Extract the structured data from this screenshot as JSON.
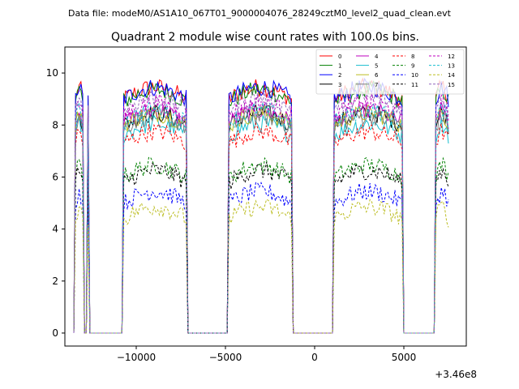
{
  "chart_data": {
    "type": "line",
    "suptitle": "Data file: modeM0/AS1A10_067T01_9000004076_28249cztM0_level2_quad_clean.evt",
    "title": "Quadrant 2 module wise count rates with 100.0s bins.",
    "xlabel": "",
    "ylabel": "",
    "x_offset_label": "+3.46e8",
    "xlim": [
      -14000,
      8500
    ],
    "ylim": [
      -0.5,
      11.0
    ],
    "x_ticks": [
      -10000,
      -5000,
      0,
      5000
    ],
    "x_tick_labels": [
      "−10000",
      "−5000",
      "0",
      "5000"
    ],
    "y_ticks": [
      0,
      2,
      4,
      6,
      8,
      10
    ],
    "y_tick_labels": [
      "0",
      "2",
      "4",
      "6",
      "8",
      "10"
    ],
    "grid": false,
    "legend_position": "upper-right",
    "legend_columns": 4,
    "series_meta": [
      {
        "name": "0",
        "color": "#ff0000",
        "style": "solid",
        "level": 9.0
      },
      {
        "name": "1",
        "color": "#008000",
        "style": "solid",
        "level": 8.9
      },
      {
        "name": "2",
        "color": "#0000ff",
        "style": "solid",
        "level": 9.0
      },
      {
        "name": "3",
        "color": "#000000",
        "style": "solid",
        "level": 8.0
      },
      {
        "name": "4",
        "color": "#bf00bf",
        "style": "solid",
        "level": 8.1
      },
      {
        "name": "5",
        "color": "#17becf",
        "style": "solid",
        "level": 7.6
      },
      {
        "name": "6",
        "color": "#bcbd22",
        "style": "solid",
        "level": 8.0
      },
      {
        "name": "7",
        "color": "#7f7f7f",
        "style": "solid",
        "level": 7.9
      },
      {
        "name": "8",
        "color": "#ff0000",
        "style": "dashed",
        "level": 7.3
      },
      {
        "name": "9",
        "color": "#008000",
        "style": "dashed",
        "level": 6.0
      },
      {
        "name": "10",
        "color": "#0000ff",
        "style": "dashed",
        "level": 5.0
      },
      {
        "name": "11",
        "color": "#000000",
        "style": "dashed",
        "level": 5.8
      },
      {
        "name": "12",
        "color": "#bf00bf",
        "style": "dashed",
        "level": 8.4
      },
      {
        "name": "13",
        "color": "#17becf",
        "style": "dashed",
        "level": 8.1
      },
      {
        "name": "14",
        "color": "#bcbd22",
        "style": "dashed",
        "level": 4.4
      },
      {
        "name": "15",
        "color": "#9467bd",
        "style": "dashed",
        "level": 8.6
      }
    ],
    "orbit_segments": [
      {
        "x_start": -13400,
        "x_end": -13000
      },
      {
        "x_start": -12700,
        "x_end": -12650
      },
      {
        "x_start": -10700,
        "x_end": -7200
      },
      {
        "x_start": -4800,
        "x_end": -1300
      },
      {
        "x_start": 1100,
        "x_end": 4900
      },
      {
        "x_start": 6800,
        "x_end": 7500
      }
    ],
    "gap_value": 0.0
  }
}
